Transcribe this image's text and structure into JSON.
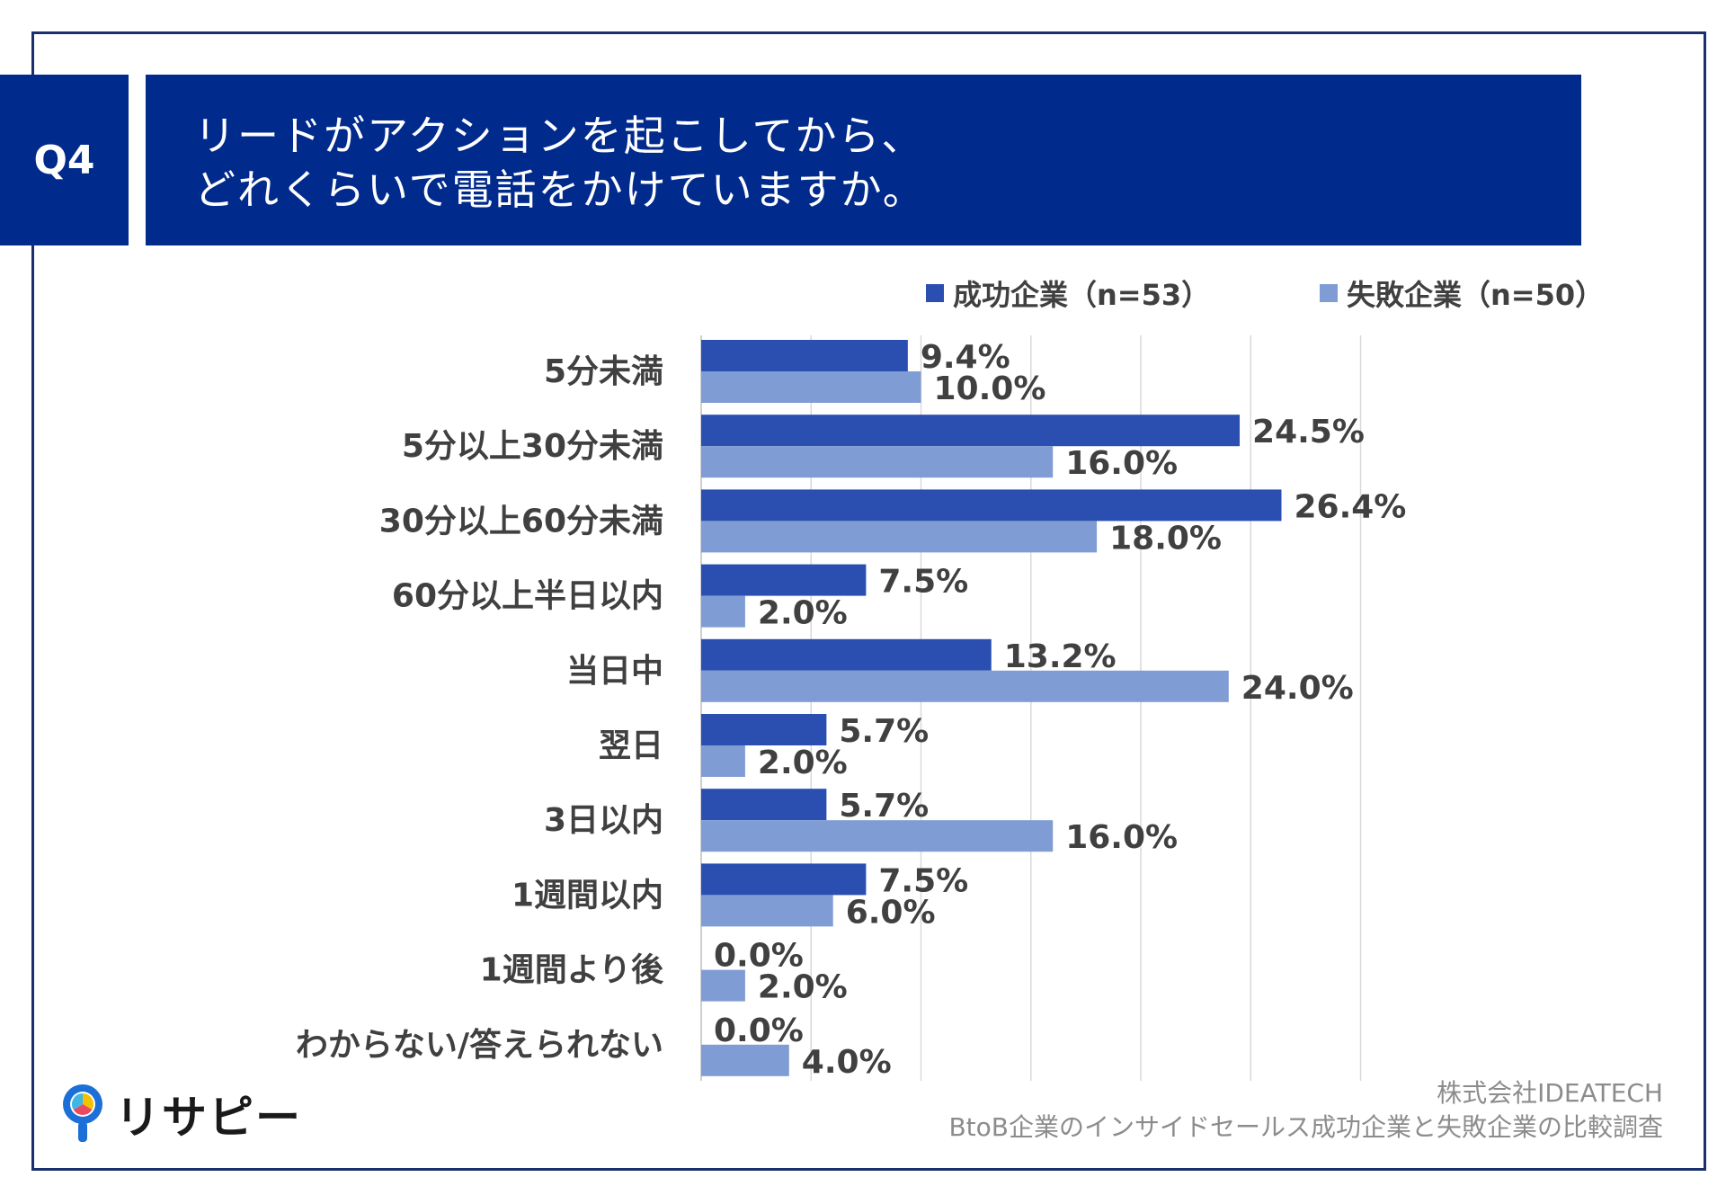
{
  "header": {
    "question_label": "Q4",
    "title_line1": "リードがアクションを起こしてから、",
    "title_line2": "どれくらいで電話をかけていますか。"
  },
  "colors": {
    "primary": "#002a8c",
    "series1": "#2a4fb0",
    "series2": "#7f9cd4",
    "grid": "#d9d9d9"
  },
  "chart_data": {
    "type": "bar",
    "orientation": "horizontal",
    "title": "リードがアクションを起こしてから、どれくらいで電話をかけていますか。",
    "categories": [
      "5分未満",
      "5分以上30分未満",
      "30分以上60分未満",
      "60分以上半日以内",
      "当日中",
      "翌日",
      "3日以内",
      "1週間以内",
      "1週間より後",
      "わからない/答えられない"
    ],
    "series": [
      {
        "name": "成功企業（n=53）",
        "values": [
          9.4,
          24.5,
          26.4,
          7.5,
          13.2,
          5.7,
          5.7,
          7.5,
          0.0,
          0.0
        ],
        "labels": [
          "9.4%",
          "24.5%",
          "26.4%",
          "7.5%",
          "13.2%",
          "5.7%",
          "5.7%",
          "7.5%",
          "0.0%",
          "0.0%"
        ]
      },
      {
        "name": "失敗企業（n=50）",
        "values": [
          10.0,
          16.0,
          18.0,
          2.0,
          24.0,
          2.0,
          16.0,
          6.0,
          2.0,
          4.0
        ],
        "labels": [
          "10.0%",
          "16.0%",
          "18.0%",
          "2.0%",
          "24.0%",
          "2.0%",
          "16.0%",
          "6.0%",
          "2.0%",
          "4.0%"
        ]
      }
    ],
    "xlim": [
      0,
      30
    ],
    "grid": true,
    "legend_position": "top-right"
  },
  "logo": {
    "text": "リサピー"
  },
  "credit": {
    "company": "株式会社IDEATECH",
    "survey": "BtoB企業のインサイドセールス成功企業と失敗企業の比較調査"
  }
}
